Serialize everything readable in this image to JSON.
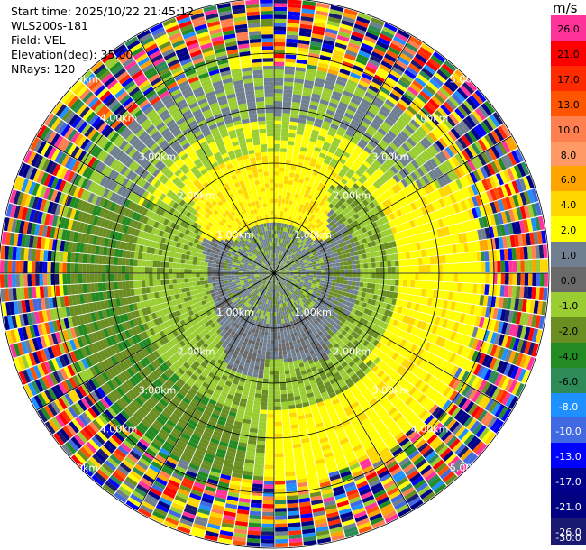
{
  "header": {
    "start_time": "Start time: 2025/10/22 21:45:12",
    "instrument": "WLS200s-181",
    "field": "Field: VEL",
    "elevation": "Elevation(deg): 35.00",
    "nrays": "NRays: 120"
  },
  "range_labels": [
    "1.00km",
    "2.00km",
    "3.00km",
    "4.00km",
    "5.00km"
  ],
  "colorbar": {
    "unit": "m/s",
    "ticks": [
      "26.0",
      "21.0",
      "17.0",
      "13.0",
      "10.0",
      "8.0",
      "6.0",
      "4.0",
      "2.0",
      "1.0",
      "0.0",
      "-1.0",
      "-2.0",
      "-4.0",
      "-6.0",
      "-8.0",
      "-10.0",
      "-13.0",
      "-17.0",
      "-21.0",
      "-26.0",
      "-30.0"
    ],
    "colors": [
      "#ff3399",
      "#ff0000",
      "#ff2a00",
      "#ff5500",
      "#ff7f50",
      "#ff9966",
      "#ffa500",
      "#ffd700",
      "#ffff00",
      "#708090",
      "#696969",
      "#9acd32",
      "#6b8e23",
      "#228b22",
      "#2e8b57",
      "#1e90ff",
      "#4169e1",
      "#0000ff",
      "#00008b",
      "#000080",
      "#191970"
    ]
  }
}
